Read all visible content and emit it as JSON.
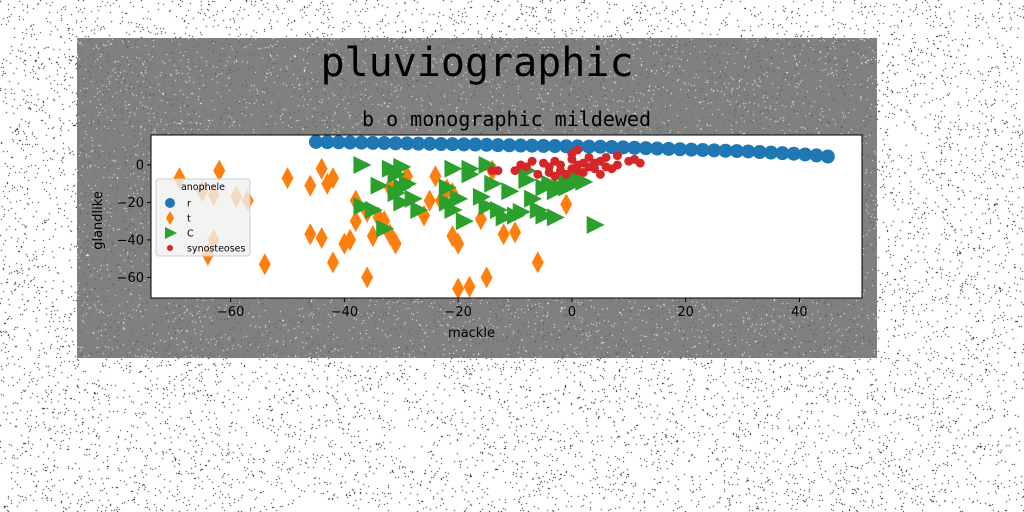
{
  "figure": {
    "suptitle": "pluviographic",
    "background": "#808080"
  },
  "chart_data": {
    "type": "scatter",
    "title": "b o monographic mildewed",
    "xlabel": "mackle",
    "ylabel": "glandlike",
    "xlim": [
      -74,
      51
    ],
    "ylim": [
      -71,
      16
    ],
    "xticks": [
      "−60",
      "−40",
      "−20",
      "0",
      "20",
      "40"
    ],
    "yticks": [
      "−60",
      "−40",
      "−20",
      "0"
    ],
    "grid": false,
    "legend": {
      "title": "anophele",
      "placement": "left"
    },
    "series": [
      {
        "name": "r",
        "marker": "circle",
        "color": "#1f77b4",
        "points": [
          [
            -45,
            12.3
          ],
          [
            -43,
            12.2
          ],
          [
            -41,
            12.1
          ],
          [
            -39,
            12.0
          ],
          [
            -37,
            11.9
          ],
          [
            -35,
            11.8
          ],
          [
            -33,
            11.7
          ],
          [
            -31,
            11.6
          ],
          [
            -29,
            11.5
          ],
          [
            -27,
            11.4
          ],
          [
            -25,
            11.3
          ],
          [
            -23,
            11.2
          ],
          [
            -21,
            11.1
          ],
          [
            -19,
            11.0
          ],
          [
            -17,
            10.9
          ],
          [
            -15,
            10.8
          ],
          [
            -13,
            10.6
          ],
          [
            -11,
            10.5
          ],
          [
            -9,
            10.4
          ],
          [
            -7,
            10.3
          ],
          [
            -5,
            10.2
          ],
          [
            -3,
            10.1
          ],
          [
            -1,
            10.0
          ],
          [
            1,
            9.9
          ],
          [
            3,
            9.8
          ],
          [
            5,
            9.7
          ],
          [
            7,
            9.6
          ],
          [
            9,
            9.4
          ],
          [
            11,
            9.2
          ],
          [
            13,
            9.0
          ],
          [
            15,
            8.8
          ],
          [
            17,
            8.6
          ],
          [
            19,
            8.4
          ],
          [
            21,
            8.2
          ],
          [
            23,
            8.0
          ],
          [
            25,
            7.8
          ],
          [
            27,
            7.6
          ],
          [
            29,
            7.4
          ],
          [
            31,
            7.2
          ],
          [
            33,
            6.9
          ],
          [
            35,
            6.6
          ],
          [
            37,
            6.3
          ],
          [
            39,
            6.0
          ],
          [
            41,
            5.6
          ],
          [
            43,
            5.1
          ],
          [
            45,
            4.5
          ]
        ]
      },
      {
        "name": "t",
        "marker": "diamond",
        "color": "#ff7f0e",
        "points": [
          [
            -69,
            -7
          ],
          [
            -65,
            -14
          ],
          [
            -64,
            -48
          ],
          [
            -63,
            -40
          ],
          [
            -63,
            -16
          ],
          [
            -62,
            -3
          ],
          [
            -59,
            -17
          ],
          [
            -57,
            -19
          ],
          [
            -54,
            -53
          ],
          [
            -50,
            -7
          ],
          [
            -46,
            -37
          ],
          [
            -46,
            -11
          ],
          [
            -44,
            -39
          ],
          [
            -44,
            -2
          ],
          [
            -43,
            -10
          ],
          [
            -42,
            -7
          ],
          [
            -42,
            -52
          ],
          [
            -40,
            -42
          ],
          [
            -39,
            -40
          ],
          [
            -38,
            -19
          ],
          [
            -38,
            -30
          ],
          [
            -36,
            -60
          ],
          [
            -36,
            -25
          ],
          [
            -35,
            -38
          ],
          [
            -34,
            -28
          ],
          [
            -33,
            -30
          ],
          [
            -32,
            -12
          ],
          [
            -32,
            -37
          ],
          [
            -31,
            -42
          ],
          [
            -29,
            -6
          ],
          [
            -26,
            -27
          ],
          [
            -25,
            -19
          ],
          [
            -24,
            -6
          ],
          [
            -23,
            -19
          ],
          [
            -22,
            -13
          ],
          [
            -21,
            -15
          ],
          [
            -21,
            -38
          ],
          [
            -20,
            -42
          ],
          [
            -20,
            -66
          ],
          [
            -18,
            -65
          ],
          [
            -16,
            -29
          ],
          [
            -15,
            -60
          ],
          [
            -14,
            -3
          ],
          [
            -12,
            -37
          ],
          [
            -10,
            -36
          ],
          [
            -6,
            -52
          ],
          [
            -1,
            -21
          ]
        ]
      },
      {
        "name": "C",
        "marker": "triangle-right",
        "color": "#2ca02c",
        "points": [
          [
            -37,
            0
          ],
          [
            -37,
            -22
          ],
          [
            -35,
            -24
          ],
          [
            -34,
            -11
          ],
          [
            -33,
            -34
          ],
          [
            -32,
            -2
          ],
          [
            -31,
            -5
          ],
          [
            -31,
            -15
          ],
          [
            -30,
            -1
          ],
          [
            -30,
            -12
          ],
          [
            -30,
            -20
          ],
          [
            -29,
            -10
          ],
          [
            -28,
            -18
          ],
          [
            -27,
            -24
          ],
          [
            -22,
            -20
          ],
          [
            -22,
            -12
          ],
          [
            -21,
            -2
          ],
          [
            -21,
            -24
          ],
          [
            -20,
            -18
          ],
          [
            -19,
            -30
          ],
          [
            -18,
            -5
          ],
          [
            -18,
            -2
          ],
          [
            -16,
            -17
          ],
          [
            -15,
            0
          ],
          [
            -15,
            -22
          ],
          [
            -14,
            -10
          ],
          [
            -13,
            -24
          ],
          [
            -12,
            -28
          ],
          [
            -11,
            -14
          ],
          [
            -10,
            -27
          ],
          [
            -9,
            -25
          ],
          [
            -8,
            -3
          ],
          [
            -8,
            -8
          ],
          [
            -7,
            -18
          ],
          [
            -6,
            -24
          ],
          [
            -5,
            -12
          ],
          [
            -5,
            -27
          ],
          [
            -4,
            -10
          ],
          [
            -3,
            -14
          ],
          [
            -3,
            -28
          ],
          [
            -2,
            -12
          ],
          [
            -1,
            -9
          ],
          [
            -1,
            -12
          ],
          [
            0,
            -10
          ],
          [
            1,
            -5
          ],
          [
            2,
            -9
          ],
          [
            4,
            -32
          ]
        ]
      },
      {
        "name": "synosteoses",
        "marker": "point",
        "color": "#d62728",
        "points": [
          [
            -14,
            -3
          ],
          [
            -13,
            -3
          ],
          [
            -10,
            -3
          ],
          [
            -9,
            0
          ],
          [
            -8,
            -1
          ],
          [
            -7,
            2
          ],
          [
            -6,
            -5
          ],
          [
            -5,
            1
          ],
          [
            -4,
            -1
          ],
          [
            -4,
            -4
          ],
          [
            -3,
            2
          ],
          [
            -3,
            -6
          ],
          [
            -2,
            0
          ],
          [
            -2,
            -3
          ],
          [
            -1,
            -5
          ],
          [
            0,
            3
          ],
          [
            0,
            -2
          ],
          [
            0,
            6
          ],
          [
            1,
            0
          ],
          [
            1,
            -3
          ],
          [
            1,
            8
          ],
          [
            2,
            1
          ],
          [
            2,
            -4
          ],
          [
            3,
            4
          ],
          [
            3,
            -1
          ],
          [
            4,
            -2
          ],
          [
            4,
            1
          ],
          [
            5,
            -5
          ],
          [
            5,
            2
          ],
          [
            6,
            -1
          ],
          [
            6,
            4
          ],
          [
            7,
            -2
          ],
          [
            8,
            0
          ],
          [
            8,
            5
          ],
          [
            10,
            2
          ],
          [
            11,
            3
          ],
          [
            12,
            1
          ]
        ]
      }
    ]
  }
}
